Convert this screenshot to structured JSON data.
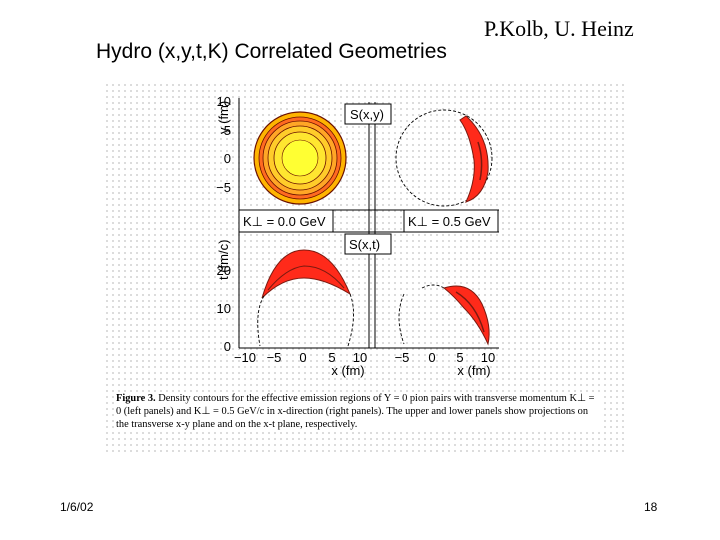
{
  "slide": {
    "author": "P.Kolb, U. Heinz",
    "title": "Hydro (x,y,t,K) Correlated Geometries",
    "date": "1/6/02",
    "page_number": "18"
  },
  "figure": {
    "panel_labels": {
      "top": "S(x,y)",
      "bottom": "S(x,t)",
      "k_left": "K⊥ = 0.0 GeV",
      "k_right": "K⊥ = 0.5 GeV"
    },
    "y_axis_top": {
      "label": "y (fm)",
      "ticks": [
        "10",
        "5",
        "0",
        "−5"
      ]
    },
    "y_axis_bottom": {
      "label": "t (fm/c)",
      "ticks": [
        "20",
        "10",
        "0"
      ]
    },
    "x_axis_left": {
      "label": "x (fm)",
      "ticks": [
        "−10",
        "−5",
        "0",
        "5",
        "10"
      ]
    },
    "x_axis_right": {
      "label": "x (fm)",
      "ticks": [
        "−5",
        "0",
        "5",
        "10"
      ]
    },
    "colors": {
      "yellow": "#ffff33",
      "orange": "#ffb400",
      "red": "#ff2a1a",
      "dark": "#7a1a10"
    }
  },
  "caption": {
    "label": "Figure 3.",
    "text": "Density contours for the effective emission regions of Y = 0 pion pairs with transverse momentum K⊥ = 0 (left panels) and K⊥ = 0.5 GeV/c in x-direction (right panels). The upper and lower panels show projections on the transverse x-y plane and on the x-t plane, respectively."
  }
}
